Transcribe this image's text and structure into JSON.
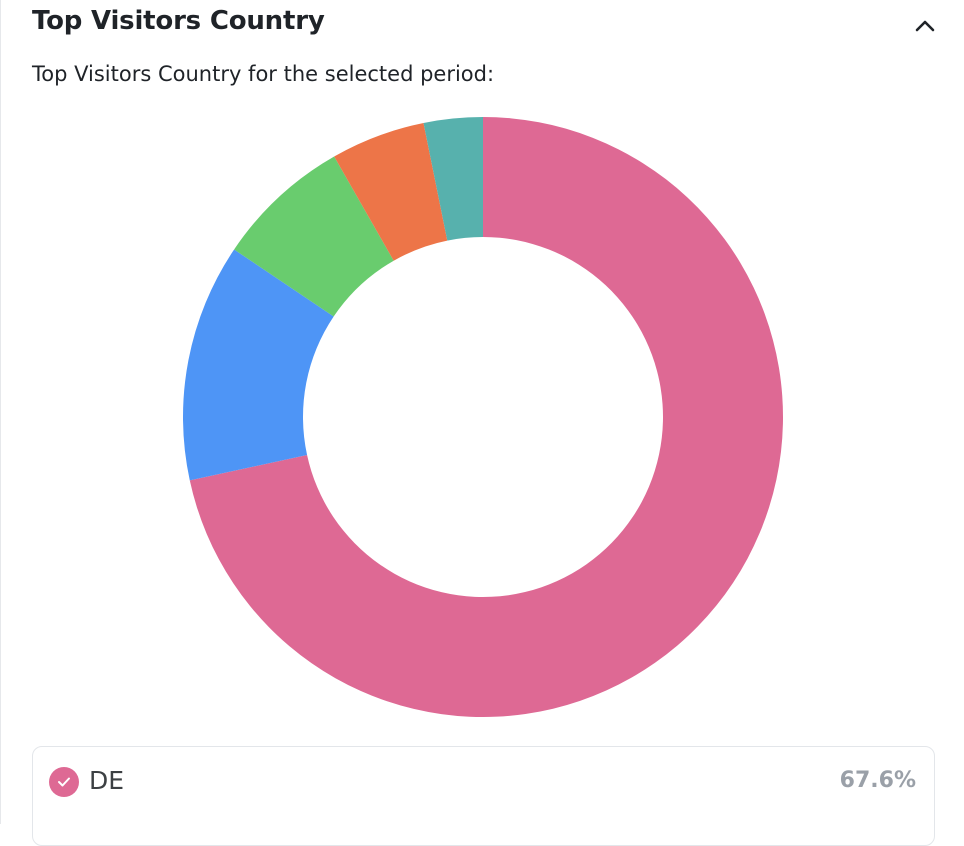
{
  "header": {
    "title": "Top Visitors Country",
    "subtitle": "Top Visitors Country for the selected period:",
    "collapse_icon": "chevron-up-icon"
  },
  "chart_data": {
    "type": "pie",
    "title": "",
    "categories": [
      "DE",
      "",
      "",
      "",
      ""
    ],
    "values": [
      67.6,
      12.1,
      6.9,
      4.8,
      3.0
    ],
    "colors": [
      "#de6994",
      "#4e95f6",
      "#69cc6e",
      "#ed7548",
      "#57b1ad"
    ]
  },
  "legend": {
    "items": [
      {
        "label": "DE",
        "value": "67.6%",
        "color": "#de6994",
        "checked": true,
        "icon": "check-icon"
      }
    ]
  }
}
